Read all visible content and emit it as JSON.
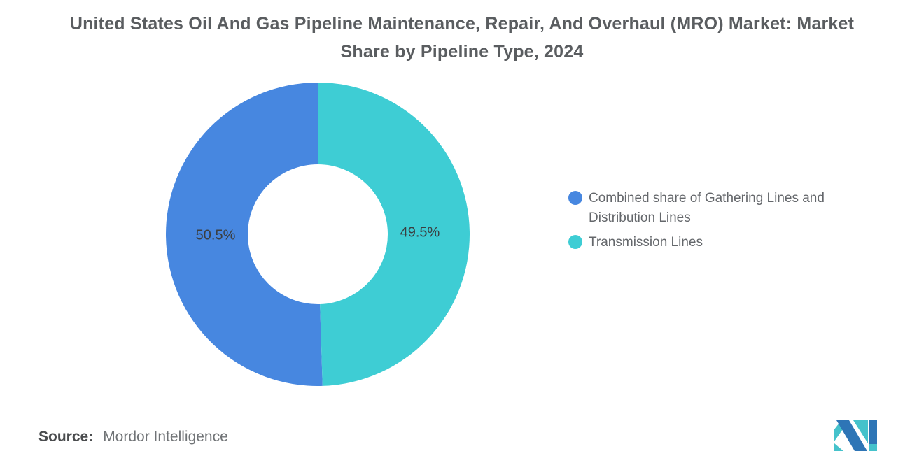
{
  "title": "United States Oil And Gas Pipeline Maintenance, Repair, And Overhaul (MRO) Market: Market Share by Pipeline Type, 2024",
  "source": {
    "label": "Source:",
    "value": "Mordor Intelligence"
  },
  "icons": {
    "logo": "mordor-intelligence-logo"
  },
  "colors": {
    "series_blue": "#4787E0",
    "series_teal": "#3ECDD4",
    "title_text": "#5a5d60",
    "legend_text": "#64676b",
    "logo_blue": "#2E75B6",
    "logo_teal": "#45C2CB"
  },
  "chart_data": {
    "type": "pie",
    "subtype": "donut",
    "title": "United States Oil And Gas Pipeline Maintenance, Repair, And Overhaul (MRO) Market: Market Share by Pipeline Type, 2024",
    "categories": [
      "Combined share of Gathering Lines and Distribution Lines",
      "Transmission Lines"
    ],
    "values": [
      50.5,
      49.5
    ],
    "value_labels": [
      "50.5%",
      "49.5%"
    ],
    "unit": "%",
    "colors": [
      "#4787E0",
      "#3ECDD4"
    ],
    "inner_radius_ratio": 0.46,
    "legend_position": "right",
    "start_angle_deg": 0,
    "direction": "blue-left-teal-right"
  }
}
